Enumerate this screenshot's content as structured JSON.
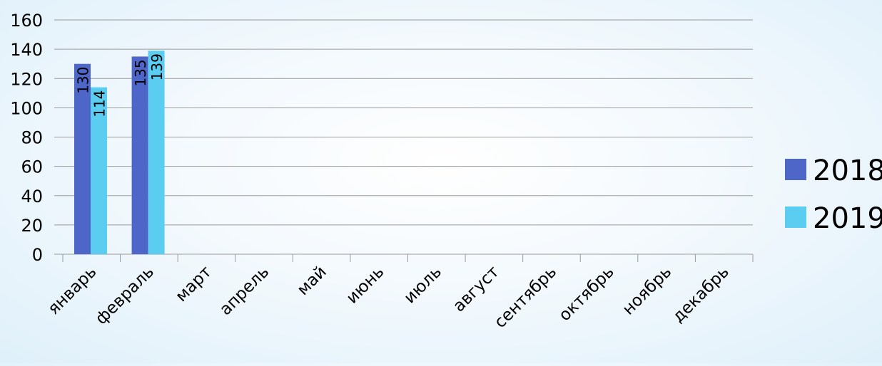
{
  "chart_data": {
    "type": "bar",
    "categories": [
      "январь",
      "февраль",
      "март",
      "апрель",
      "май",
      "июнь",
      "июль",
      "август",
      "сентябрь",
      "октябрь",
      "ноябрь",
      "декабрь"
    ],
    "series": [
      {
        "name": "2018",
        "color": "#4F66C9",
        "values": [
          130,
          135,
          null,
          null,
          null,
          null,
          null,
          null,
          null,
          null,
          null,
          null
        ]
      },
      {
        "name": "2019",
        "color": "#5BCDF0",
        "values": [
          114,
          139,
          null,
          null,
          null,
          null,
          null,
          null,
          null,
          null,
          null,
          null
        ]
      }
    ],
    "data_labels": true,
    "ylim": [
      0,
      160
    ],
    "yticks": [
      0,
      20,
      40,
      60,
      80,
      100,
      120,
      140,
      160
    ],
    "grid": true,
    "legend_position": "right"
  }
}
